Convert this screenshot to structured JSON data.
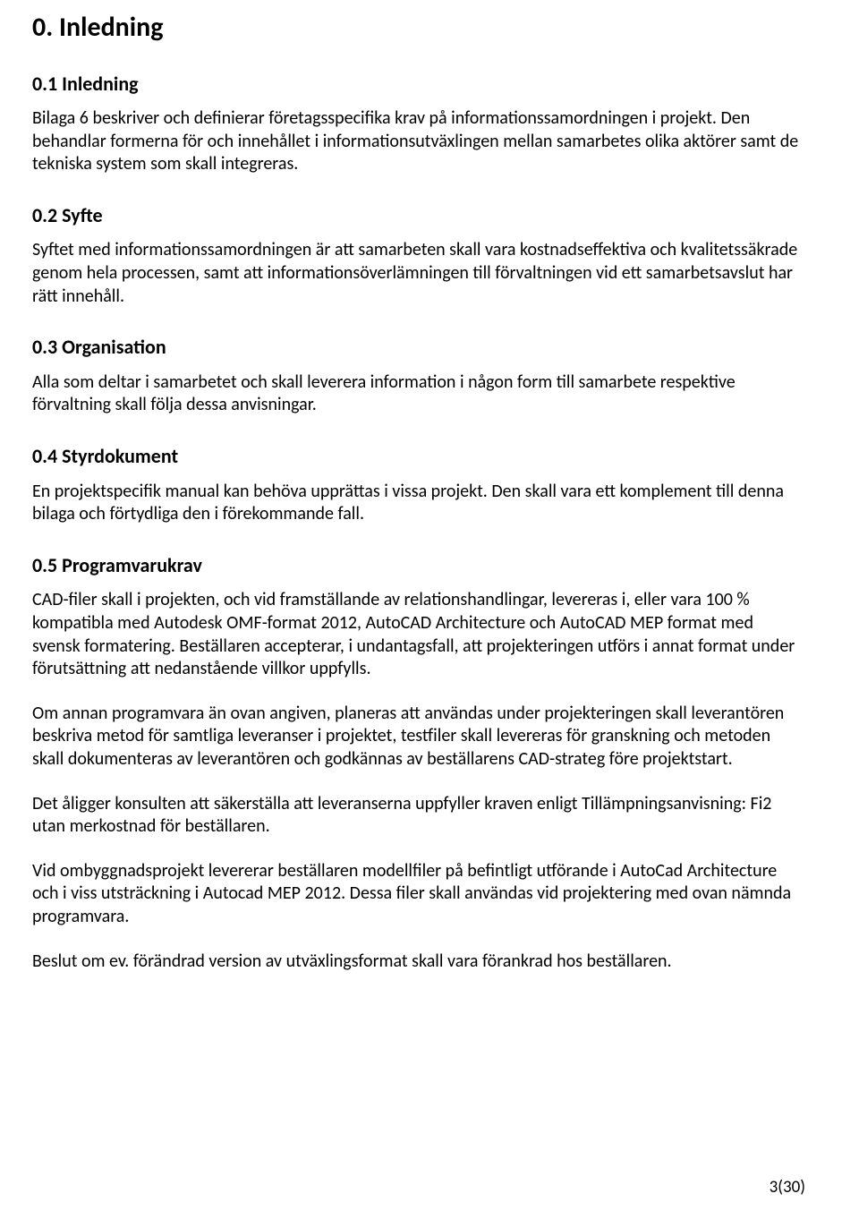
{
  "headings": {
    "h1_inledning": "0. Inledning",
    "h2_01": "0.1 Inledning",
    "h2_02": "0.2 Syfte",
    "h2_03": "0.3 Organisation",
    "h2_04": "0.4 Styrdokument",
    "h2_05": "0.5 Programvarukrav"
  },
  "paragraphs": {
    "p01": "Bilaga 6 beskriver och definierar företagsspecifika krav på informationssamordningen i projekt. Den behandlar formerna för och innehållet i informationsutväxlingen mellan samarbetes olika aktörer samt de tekniska system som skall integreras.",
    "p02": "Syftet med informationssamordningen är att samarbeten skall vara kostnadseffektiva och kvalitetssäkrade genom hela processen, samt att informationsöverlämningen till förvaltningen vid ett samarbetsavslut har rätt innehåll.",
    "p03": "Alla som deltar i samarbetet och skall leverera information i någon form till samarbete respektive förvaltning skall följa dessa anvisningar.",
    "p04": "En projektspecifik manual kan behöva upprättas i vissa projekt. Den skall vara ett komplement till denna bilaga och förtydliga den i förekommande fall.",
    "p05a": "CAD-filer skall i projekten, och vid framställande av relationshandlingar, levereras i, eller vara 100 % kompatibla med Autodesk OMF-format 2012, AutoCAD Architecture och AutoCAD MEP format med svensk formatering. Beställaren accepterar, i undantagsfall, att projekteringen utförs i annat format under förutsättning att nedanstående villkor uppfylls.",
    "p05b": "Om annan programvara än ovan angiven, planeras att användas under projekteringen skall leverantören beskriva metod för samtliga leveranser i projektet, testfiler skall levereras för granskning och metoden skall dokumenteras av leverantören och godkännas av beställarens CAD-strateg före projektstart.",
    "p05c": "Det åligger konsulten att säkerställa att leveranserna uppfyller kraven enligt Tillämpningsanvisning: Fi2 utan merkostnad för beställaren.",
    "p05d": "Vid ombyggnadsprojekt levererar beställaren modellfiler på befintligt utförande i AutoCad Architecture och i viss utsträckning i Autocad MEP 2012. Dessa filer skall användas vid projektering med ovan nämnda programvara.",
    "p05e": "Beslut om ev. förändrad version av utväxlingsformat skall vara förankrad hos beställaren."
  },
  "footer": {
    "page_label": "3(30)"
  }
}
